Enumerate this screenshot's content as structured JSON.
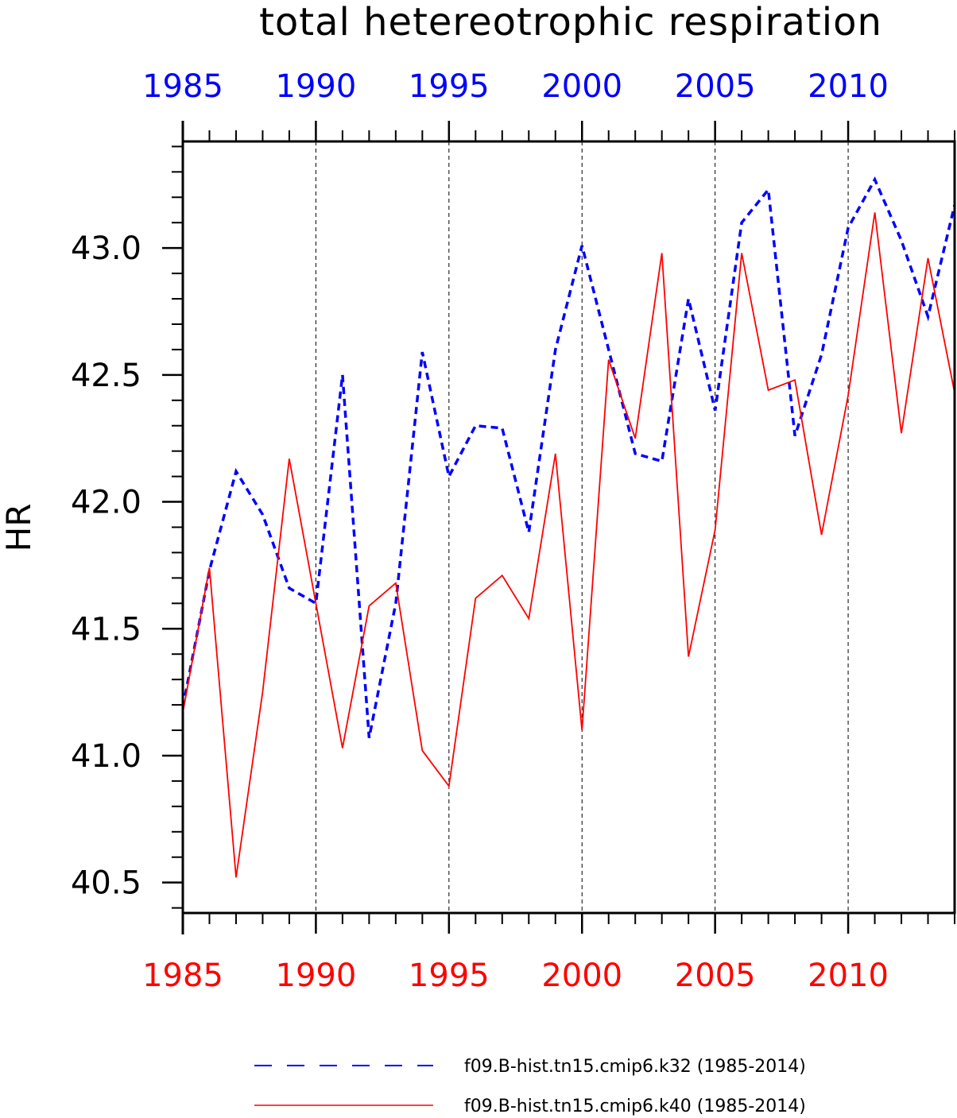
{
  "chart_data": {
    "type": "line",
    "title": "total hetereotrophic respiration",
    "ylabel": "HR",
    "xlabel": "",
    "xlim": [
      1985,
      2014
    ],
    "ylim": [
      40.38,
      43.42
    ],
    "x_ticks": [
      1985,
      1990,
      1995,
      2000,
      2005,
      2010
    ],
    "x_tick_labels": [
      "1985",
      "1990",
      "1995",
      "2000",
      "2005",
      "2010"
    ],
    "y_ticks": [
      40.5,
      41.0,
      41.5,
      42.0,
      42.5,
      43.0
    ],
    "y_tick_labels": [
      "40.5",
      "41.0",
      "41.5",
      "42.0",
      "42.5",
      "43.0"
    ],
    "top_axis_color": "#0000ff",
    "bottom_axis_color": "#ff0000",
    "grid": "vertical dashed at major x ticks",
    "legend_position": "bottom",
    "x": [
      1985,
      1986,
      1987,
      1988,
      1989,
      1990,
      1991,
      1992,
      1993,
      1994,
      1995,
      1996,
      1997,
      1998,
      1999,
      2000,
      2001,
      2002,
      2003,
      2004,
      2005,
      2006,
      2007,
      2008,
      2009,
      2010,
      2011,
      2012,
      2013,
      2014
    ],
    "series": [
      {
        "name": "f09.B-hist.tn15.cmip6.k32 (1985-2014)",
        "color": "#0000ff",
        "style": "dashed",
        "values": [
          41.19,
          41.73,
          42.12,
          41.95,
          41.66,
          41.6,
          42.5,
          41.07,
          41.6,
          42.59,
          42.1,
          42.3,
          42.29,
          41.88,
          42.6,
          43.01,
          42.6,
          42.19,
          42.16,
          42.8,
          42.36,
          43.1,
          43.23,
          42.26,
          42.58,
          43.08,
          43.27,
          43.03,
          42.73,
          43.17
        ]
      },
      {
        "name": "f09.B-hist.tn15.cmip6.k40 (1985-2014)",
        "color": "#ff0000",
        "style": "solid",
        "values": [
          41.17,
          41.74,
          40.52,
          41.25,
          42.17,
          41.6,
          41.03,
          41.59,
          41.68,
          41.02,
          40.88,
          41.62,
          41.71,
          41.54,
          42.19,
          41.1,
          42.56,
          42.25,
          42.98,
          41.39,
          41.89,
          42.98,
          42.44,
          42.48,
          41.87,
          42.42,
          43.14,
          42.27,
          42.96,
          42.43
        ]
      }
    ]
  }
}
